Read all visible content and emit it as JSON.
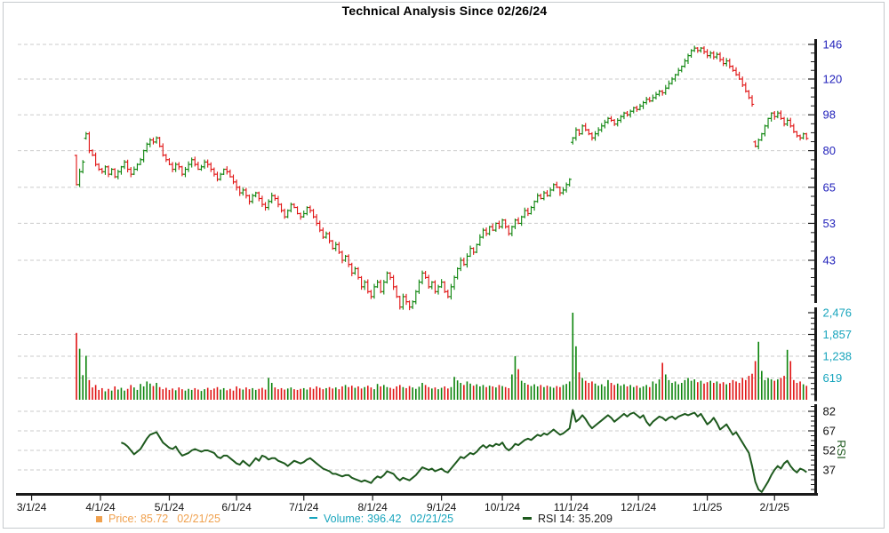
{
  "title": "Technical Analysis Since 02/26/24",
  "colors": {
    "up": "#0b840b",
    "down": "#e01212",
    "rsi_line": "#1e5a1e",
    "grid": "#cbcbcb",
    "axis": "#1a1a1a",
    "price_label": "#2222bb",
    "volume_label": "#18a5bd",
    "rsi_label": "#111111",
    "date_label": "#111111",
    "legend_price": "#f0a14e"
  },
  "legend": {
    "price": {
      "label": "Price:",
      "value": "85.72",
      "date": "02/21/25"
    },
    "volume": {
      "label": "Volume:",
      "value": "396.42",
      "date": "02/21/25"
    },
    "rsi": {
      "label": "RSI 14:",
      "value": "35.209"
    }
  },
  "x_axis": {
    "ticks": [
      {
        "label": "3/1/24",
        "day": -14
      },
      {
        "label": "4/1/24",
        "day": 7.5
      },
      {
        "label": "5/1/24",
        "day": 29
      },
      {
        "label": "6/1/24",
        "day": 50
      },
      {
        "label": "7/1/24",
        "day": 71
      },
      {
        "label": "8/1/24",
        "day": 92.5
      },
      {
        "label": "9/1/24",
        "day": 114
      },
      {
        "label": "10/1/24",
        "day": 133
      },
      {
        "label": "11/1/24",
        "day": 154.5
      },
      {
        "label": "12/1/24",
        "day": 175.5
      },
      {
        "label": "1/1/25",
        "day": 197
      },
      {
        "label": "2/1/25",
        "day": 218
      }
    ]
  },
  "chart_data": [
    {
      "type": "ohlc-bar",
      "name": "price",
      "title": "Technical Analysis Since 02/26/24",
      "legend": "Price",
      "y_axis": {
        "scale": "log",
        "ticks": [
          146,
          120,
          98,
          80,
          65,
          53,
          43
        ],
        "side": "right"
      },
      "grid": true,
      "last": {
        "value": 85.72,
        "date": "02/21/25"
      },
      "close": [
        66,
        71,
        75,
        88,
        80,
        78,
        74,
        72,
        71,
        73,
        70,
        72,
        69,
        71,
        73,
        75,
        72,
        70,
        72,
        74,
        76,
        80,
        83,
        85,
        84,
        86,
        82,
        78,
        76,
        74,
        72,
        74,
        73,
        70,
        72,
        74,
        76,
        74,
        72,
        73,
        75,
        74,
        72,
        70,
        68,
        70,
        72,
        71,
        69,
        67,
        65,
        63,
        64,
        62,
        60,
        62,
        63,
        61,
        59,
        58,
        60,
        62,
        61,
        59,
        57,
        55,
        57,
        59,
        58,
        56,
        55,
        56,
        58,
        57,
        55,
        53,
        51,
        49,
        50,
        48,
        46,
        47,
        45,
        43,
        44,
        42,
        40,
        41,
        39,
        37,
        38,
        36,
        35,
        37,
        38,
        36,
        38,
        40,
        39,
        37,
        35,
        33,
        35,
        34,
        33,
        34,
        36,
        38,
        40,
        39,
        37,
        38,
        36,
        37,
        38,
        36,
        35,
        37,
        39,
        41,
        43,
        42,
        44,
        46,
        45,
        47,
        49,
        51,
        50,
        52,
        51,
        53,
        52,
        54,
        52,
        50,
        52,
        54,
        53,
        55,
        57,
        56,
        58,
        60,
        62,
        61,
        63,
        62,
        64,
        66,
        65,
        63,
        64,
        66,
        68,
        86,
        90,
        88,
        92,
        90,
        88,
        86,
        88,
        90,
        92,
        94,
        96,
        95,
        93,
        95,
        97,
        99,
        98,
        100,
        102,
        101,
        103,
        105,
        107,
        106,
        108,
        110,
        112,
        111,
        114,
        117,
        120,
        123,
        126,
        129,
        133,
        137,
        141,
        143,
        141,
        143,
        140,
        137,
        139,
        136,
        138,
        134,
        131,
        133,
        129,
        126,
        123,
        120,
        116,
        112,
        108,
        104,
        82,
        85,
        88,
        92,
        96,
        99,
        97,
        99,
        96,
        93,
        95,
        92,
        89,
        87,
        86,
        88,
        85.72
      ]
    },
    {
      "type": "bar",
      "name": "volume",
      "legend": "Volume",
      "y_axis": {
        "scale": "linear",
        "ticks": [
          2476,
          1857,
          1238,
          619
        ],
        "tick_labels": [
          "2,476",
          "1,857",
          "1,238",
          "619"
        ],
        "side": "right"
      },
      "grid": true,
      "last": {
        "value": 396.42,
        "date": "02/21/25"
      },
      "values": [
        1900,
        1450,
        700,
        1250,
        560,
        350,
        420,
        280,
        330,
        240,
        310,
        260,
        380,
        290,
        340,
        260,
        310,
        420,
        350,
        280,
        450,
        380,
        520,
        460,
        390,
        480,
        360,
        300,
        340,
        280,
        320,
        270,
        350,
        300,
        260,
        310,
        280,
        330,
        290,
        250,
        300,
        340,
        280,
        320,
        360,
        290,
        330,
        270,
        310,
        260,
        380,
        320,
        290,
        350,
        300,
        330,
        280,
        310,
        340,
        290,
        620,
        480,
        350,
        300,
        330,
        290,
        320,
        350,
        300,
        280,
        310,
        330,
        290,
        350,
        310,
        380,
        340,
        300,
        330,
        360,
        320,
        350,
        300,
        380,
        420,
        360,
        400,
        340,
        380,
        320,
        360,
        400,
        350,
        300,
        450,
        380,
        420,
        360,
        340,
        310,
        380,
        420,
        360,
        330,
        390,
        350,
        310,
        370,
        480,
        420,
        360,
        320,
        350,
        300,
        340,
        380,
        320,
        360,
        650,
        550,
        480,
        420,
        520,
        460,
        400,
        440,
        380,
        420,
        360,
        400,
        380,
        350,
        420,
        390,
        360,
        330,
        720,
        1240,
        870,
        540,
        480,
        430,
        390,
        440,
        380,
        420,
        360,
        400,
        370,
        340,
        390,
        360,
        420,
        450,
        520,
        2476,
        1520,
        780,
        620,
        540,
        480,
        520,
        460,
        400,
        440,
        380,
        560,
        480,
        420,
        460,
        400,
        440,
        380,
        420,
        360,
        400,
        340,
        380,
        420,
        360,
        520,
        460,
        580,
        1050,
        720,
        560,
        480,
        520,
        440,
        480,
        560,
        620,
        540,
        580,
        500,
        540,
        460,
        500,
        540,
        480,
        520,
        460,
        500,
        440,
        480,
        560,
        520,
        480,
        620,
        560,
        680,
        740,
        1100,
        1650,
        820,
        560,
        620,
        580,
        540,
        580,
        620,
        680,
        1420,
        1100,
        560,
        480,
        520,
        440,
        396
      ]
    },
    {
      "type": "line",
      "name": "rsi-14",
      "legend": "RSI 14",
      "period": 14,
      "y_axis": {
        "scale": "linear",
        "ticks": [
          82,
          67,
          52,
          37
        ],
        "axis_title": "RSI",
        "side": "right"
      },
      "grid": true,
      "last": {
        "value": 35.209
      },
      "values": [
        null,
        null,
        null,
        null,
        null,
        null,
        null,
        null,
        null,
        null,
        null,
        null,
        null,
        null,
        58,
        57,
        55,
        52,
        49,
        51,
        53,
        57,
        61,
        64,
        65,
        66,
        62,
        58,
        56,
        54,
        53,
        55,
        51,
        48,
        49,
        50,
        52,
        53,
        52,
        51,
        52,
        52,
        51,
        50,
        47,
        46,
        48,
        48,
        46,
        44,
        42,
        41,
        44,
        42,
        40,
        43,
        46,
        44,
        48,
        47,
        45,
        46,
        46,
        44,
        43,
        42,
        40,
        42,
        44,
        43,
        42,
        43,
        45,
        46,
        44,
        42,
        40,
        38,
        37,
        36,
        34,
        34,
        33,
        32,
        33,
        33,
        31,
        30,
        29,
        28,
        29,
        28,
        27,
        30,
        32,
        31,
        33,
        36,
        35,
        34,
        31,
        29,
        31,
        30,
        29,
        31,
        33,
        36,
        39,
        38,
        37,
        38,
        36,
        37,
        38,
        36,
        35,
        38,
        41,
        44,
        47,
        46,
        48,
        50,
        49,
        51,
        54,
        56,
        54,
        56,
        55,
        57,
        56,
        58,
        54,
        52,
        54,
        57,
        56,
        58,
        60,
        61,
        60,
        62,
        64,
        63,
        65,
        64,
        66,
        68,
        66,
        64,
        65,
        67,
        69,
        83,
        74,
        76,
        79,
        76,
        72,
        69,
        71,
        73,
        75,
        77,
        79,
        77,
        74,
        76,
        78,
        80,
        78,
        80,
        81,
        79,
        77,
        79,
        74,
        71,
        74,
        76,
        78,
        77,
        75,
        77,
        78,
        76,
        78,
        79,
        80,
        79,
        80,
        81,
        78,
        80,
        76,
        72,
        74,
        77,
        73,
        68,
        70,
        72,
        68,
        64,
        66,
        62,
        58,
        54,
        50,
        40,
        28,
        22,
        20,
        24,
        28,
        33,
        37,
        40,
        38,
        42,
        44,
        40,
        37,
        35,
        38,
        37,
        35.209
      ]
    }
  ]
}
